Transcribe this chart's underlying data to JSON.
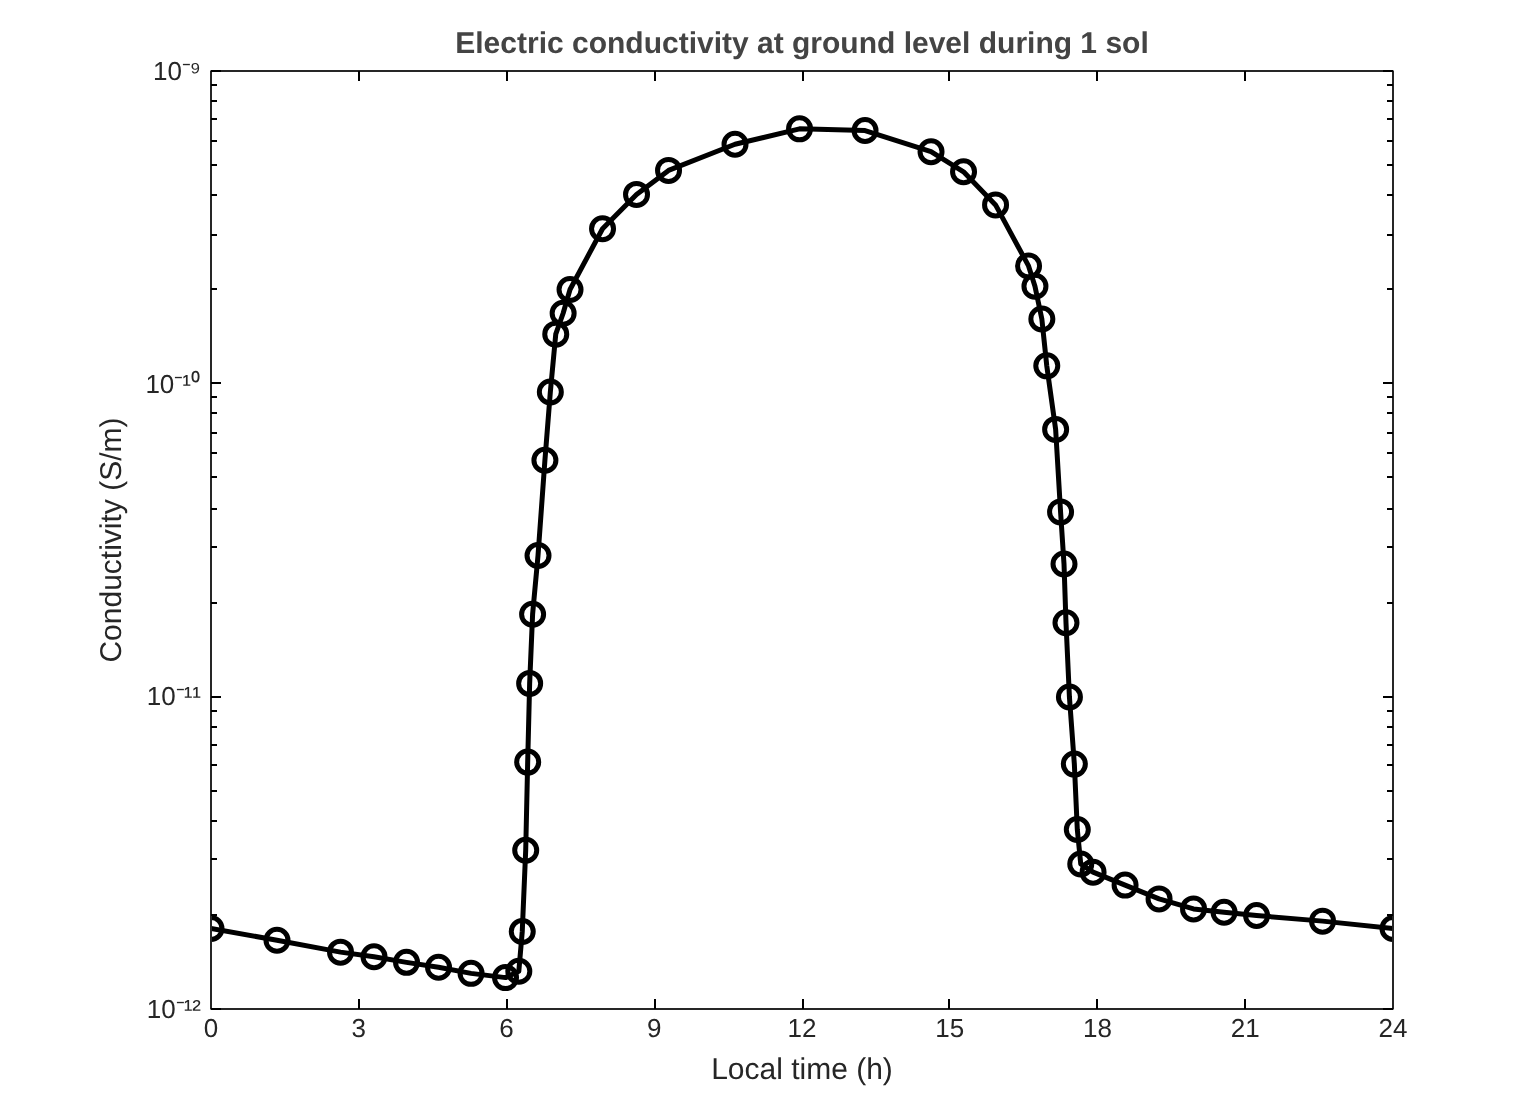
{
  "chart_data": {
    "type": "line",
    "title": "Electric conductivity at ground level during 1 sol",
    "xlabel": "Local time (h)",
    "ylabel": "Conductivity (S/m)",
    "log": "y",
    "grid": false,
    "marker": "circle",
    "line_style": "solid",
    "xlim": [
      0,
      24
    ],
    "xticks": [
      0,
      3,
      6,
      9,
      12,
      15,
      18,
      21,
      24
    ],
    "ylim": [
      1e-12,
      1e-09
    ],
    "yticks": [
      {
        "value": 1e-12,
        "label": "10⁻¹²"
      },
      {
        "value": 1e-11,
        "label": "10⁻¹¹"
      },
      {
        "value": 1e-10,
        "label": "10⁻¹⁰"
      },
      {
        "value": 1e-09,
        "label": "10⁻⁹"
      }
    ],
    "series": [
      {
        "color": "#000000",
        "x": [
          0,
          1.34,
          2.63,
          3.31,
          3.97,
          4.62,
          5.28,
          5.98,
          6.25,
          6.32,
          6.39,
          6.43,
          6.47,
          6.53,
          6.64,
          6.78,
          6.89,
          7.0,
          7.15,
          7.29,
          7.95,
          8.64,
          9.29,
          10.64,
          11.95,
          13.28,
          14.62,
          15.28,
          15.93,
          16.6,
          16.73,
          16.87,
          16.97,
          17.15,
          17.25,
          17.32,
          17.36,
          17.43,
          17.53,
          17.59,
          17.66,
          17.91,
          18.56,
          19.25,
          19.95,
          20.57,
          21.23,
          22.57,
          24
        ],
        "values": [
          1.81e-12,
          1.66e-12,
          1.52e-12,
          1.47e-12,
          1.41e-12,
          1.36e-12,
          1.3e-12,
          1.26e-12,
          1.32e-12,
          1.77e-12,
          3.22e-12,
          6.16e-12,
          1.1e-11,
          1.83e-11,
          2.82e-11,
          5.69e-11,
          9.4e-11,
          1.44e-10,
          1.68e-10,
          2e-10,
          3.13e-10,
          4.03e-10,
          4.81e-10,
          5.83e-10,
          6.53e-10,
          6.45e-10,
          5.52e-10,
          4.76e-10,
          3.73e-10,
          2.38e-10,
          2.05e-10,
          1.61e-10,
          1.14e-10,
          7.14e-11,
          3.89e-11,
          2.65e-11,
          1.72e-11,
          9.95e-12,
          6.07e-12,
          3.75e-12,
          2.91e-12,
          2.74e-12,
          2.49e-12,
          2.25e-12,
          2.09e-12,
          2.04e-12,
          1.99e-12,
          1.91e-12,
          1.81e-12
        ]
      }
    ]
  }
}
